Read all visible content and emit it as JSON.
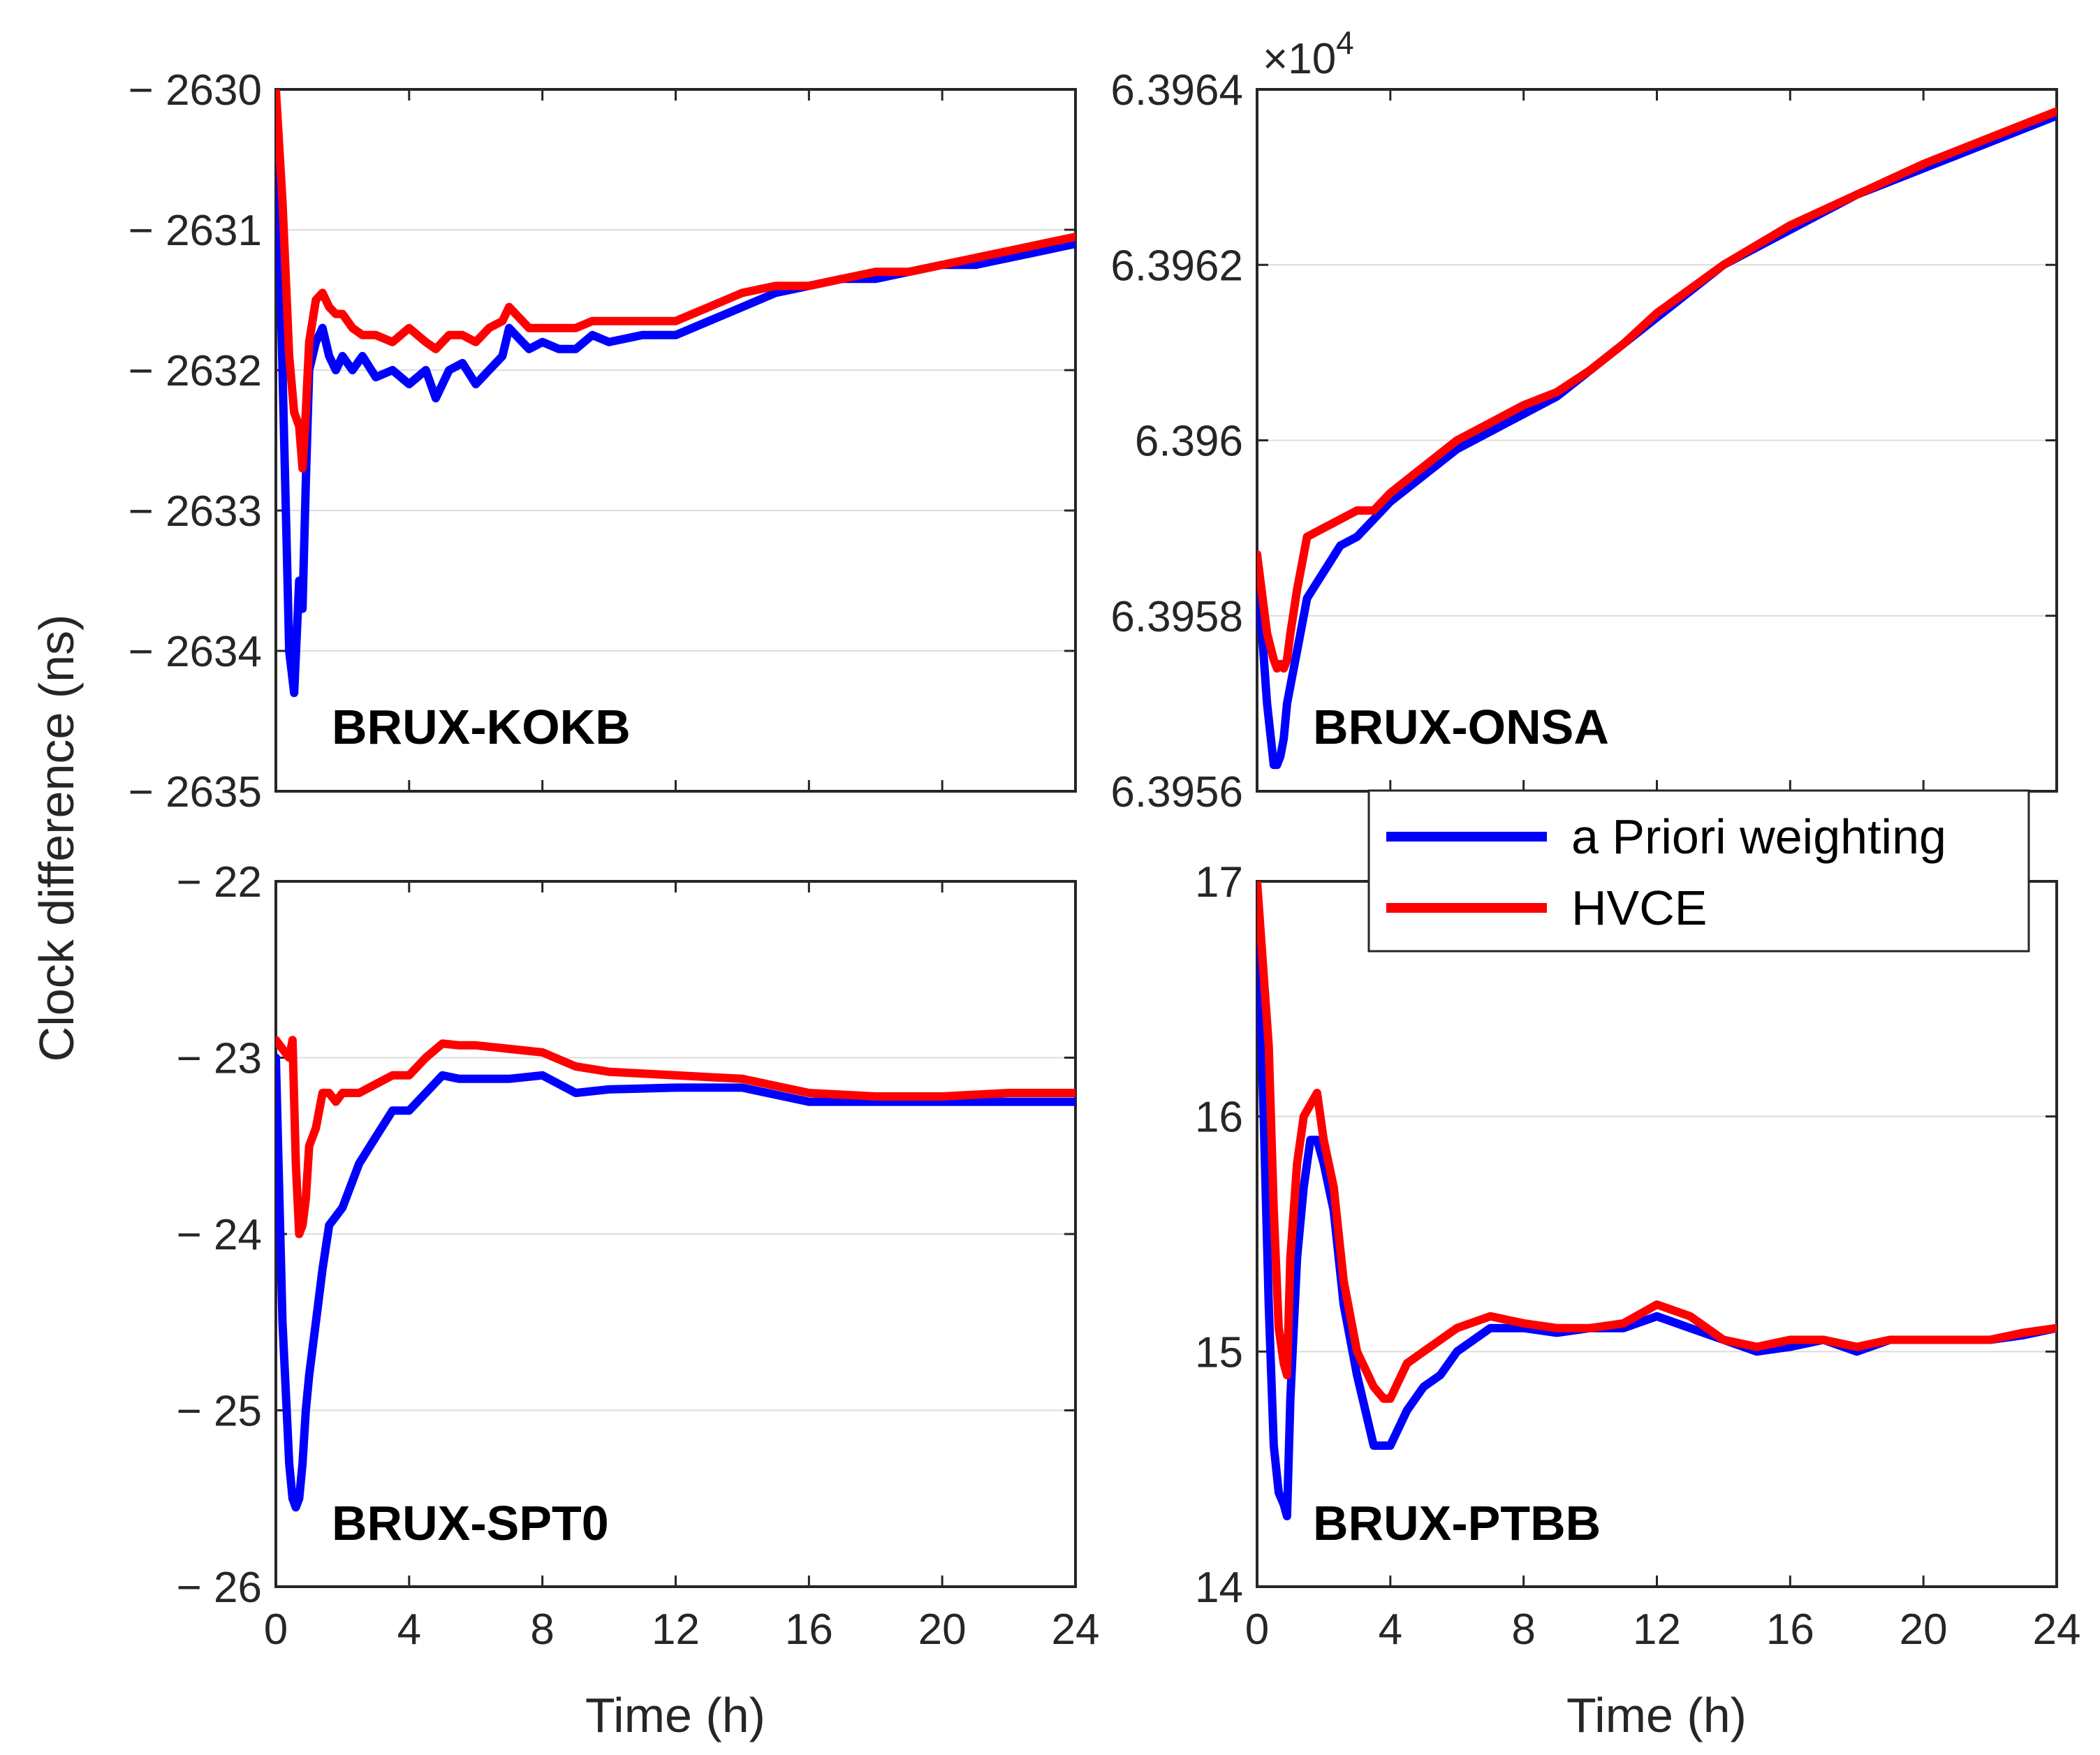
{
  "figure": {
    "ylabel": "Clock difference (ns)"
  },
  "legend": {
    "location": "between right panels",
    "entries": [
      {
        "label": "a Priori weighting",
        "color": "#0000ff"
      },
      {
        "label": "HVCE",
        "color": "#ff0000"
      }
    ]
  },
  "chart_data": [
    {
      "type": "line",
      "annotation": "BRUX-KOKB",
      "xlabel": "",
      "ylabel": "",
      "xlim": [
        0,
        24
      ],
      "xticks": [
        0,
        4,
        8,
        12,
        16,
        20,
        24
      ],
      "xtick_labels": [],
      "ylim": [
        -2635,
        -2630
      ],
      "yticks": [
        -2630,
        -2631,
        -2632,
        -2633,
        -2634,
        -2635
      ],
      "ytick_labels": [
        "− 2630",
        "− 2631",
        "− 2632",
        "− 2633",
        "− 2634",
        "− 2635"
      ],
      "exponent": "",
      "series": [
        {
          "name": "a Priori weighting",
          "color": "#0000ff",
          "x": [
            0,
            0.2,
            0.4,
            0.55,
            0.7,
            0.8,
            0.9,
            1.0,
            1.2,
            1.4,
            1.6,
            1.8,
            2.0,
            2.3,
            2.6,
            3.0,
            3.5,
            4.0,
            4.5,
            4.8,
            5.2,
            5.6,
            6.0,
            6.4,
            6.8,
            7.0,
            7.2,
            7.6,
            8.0,
            8.5,
            9.0,
            9.5,
            10.0,
            11.0,
            12.0,
            13.0,
            14.0,
            15.0,
            16.0,
            17.0,
            18.0,
            19.0,
            20.0,
            21.0,
            22.0,
            23.0,
            24.0
          ],
          "y": [
            -2630.0,
            -2632.0,
            -2634.0,
            -2634.3,
            -2633.5,
            -2633.7,
            -2632.8,
            -2632.0,
            -2631.8,
            -2631.7,
            -2631.9,
            -2632.0,
            -2631.9,
            -2632.0,
            -2631.9,
            -2632.05,
            -2632.0,
            -2632.1,
            -2632.0,
            -2632.2,
            -2632.0,
            -2631.95,
            -2632.1,
            -2632.0,
            -2631.9,
            -2631.7,
            -2631.75,
            -2631.85,
            -2631.8,
            -2631.85,
            -2631.85,
            -2631.75,
            -2631.8,
            -2631.75,
            -2631.75,
            -2631.65,
            -2631.55,
            -2631.45,
            -2631.4,
            -2631.35,
            -2631.35,
            -2631.3,
            -2631.25,
            -2631.25,
            -2631.2,
            -2631.15,
            -2631.1
          ]
        },
        {
          "name": "HVCE",
          "color": "#ff0000",
          "x": [
            0,
            0.2,
            0.4,
            0.55,
            0.7,
            0.8,
            0.9,
            1.0,
            1.2,
            1.4,
            1.6,
            1.8,
            2.0,
            2.3,
            2.6,
            3.0,
            3.5,
            4.0,
            4.5,
            4.8,
            5.2,
            5.6,
            6.0,
            6.4,
            6.8,
            7.0,
            7.2,
            7.6,
            8.0,
            8.5,
            9.0,
            9.5,
            10.0,
            11.0,
            12.0,
            13.0,
            14.0,
            15.0,
            16.0,
            17.0,
            18.0,
            19.0,
            20.0,
            21.0,
            22.0,
            23.0,
            24.0
          ],
          "y": [
            -2630.0,
            -2630.8,
            -2631.9,
            -2632.3,
            -2632.4,
            -2632.7,
            -2632.3,
            -2631.8,
            -2631.5,
            -2631.45,
            -2631.55,
            -2631.6,
            -2631.6,
            -2631.7,
            -2631.75,
            -2631.75,
            -2631.8,
            -2631.7,
            -2631.8,
            -2631.85,
            -2631.75,
            -2631.75,
            -2631.8,
            -2631.7,
            -2631.65,
            -2631.55,
            -2631.6,
            -2631.7,
            -2631.7,
            -2631.7,
            -2631.7,
            -2631.65,
            -2631.65,
            -2631.65,
            -2631.65,
            -2631.55,
            -2631.45,
            -2631.4,
            -2631.4,
            -2631.35,
            -2631.3,
            -2631.3,
            -2631.25,
            -2631.2,
            -2631.15,
            -2631.1,
            -2631.05
          ]
        }
      ]
    },
    {
      "type": "line",
      "annotation": "BRUX-ONSA",
      "xlabel": "",
      "ylabel": "",
      "xlim": [
        0,
        24
      ],
      "xticks": [
        0,
        4,
        8,
        12,
        16,
        20,
        24
      ],
      "xtick_labels": [],
      "ylim": [
        63956,
        63964
      ],
      "yticks": [
        63956,
        63958,
        63960,
        63962,
        63964
      ],
      "ytick_labels": [
        "6.3956",
        "6.3958",
        "6.396",
        "6.3962",
        "6.3964"
      ],
      "exponent": "×10",
      "exponent_power": "4",
      "series": [
        {
          "name": "a Priori weighting",
          "color": "#0000ff",
          "x": [
            0,
            0.3,
            0.5,
            0.6,
            0.7,
            0.8,
            0.9,
            1.0,
            1.2,
            1.5,
            2.0,
            2.5,
            3.0,
            3.5,
            4.0,
            5.0,
            6.0,
            7.0,
            8.0,
            9.0,
            10.0,
            11.0,
            12.0,
            14.0,
            16.0,
            18.0,
            20.0,
            22.0,
            24.0
          ],
          "y": [
            63958.6,
            63957.0,
            63956.3,
            63956.3,
            63956.4,
            63956.6,
            63957.0,
            63957.2,
            63957.6,
            63958.2,
            63958.5,
            63958.8,
            63958.9,
            63959.1,
            63959.3,
            63959.6,
            63959.9,
            63960.1,
            63960.3,
            63960.5,
            63960.8,
            63961.1,
            63961.4,
            63962.0,
            63962.4,
            63962.8,
            63963.1,
            63963.4,
            63963.7
          ]
        },
        {
          "name": "HVCE",
          "color": "#ff0000",
          "x": [
            0,
            0.3,
            0.5,
            0.6,
            0.7,
            0.8,
            0.9,
            1.0,
            1.2,
            1.5,
            2.0,
            2.5,
            3.0,
            3.5,
            4.0,
            5.0,
            6.0,
            7.0,
            8.0,
            9.0,
            10.0,
            11.0,
            12.0,
            14.0,
            16.0,
            18.0,
            20.0,
            22.0,
            24.0
          ],
          "y": [
            63958.7,
            63957.8,
            63957.5,
            63957.4,
            63957.45,
            63957.4,
            63957.5,
            63957.8,
            63958.3,
            63958.9,
            63959.0,
            63959.1,
            63959.2,
            63959.2,
            63959.4,
            63959.7,
            63960.0,
            63960.2,
            63960.4,
            63960.55,
            63960.8,
            63961.1,
            63961.45,
            63962.0,
            63962.45,
            63962.8,
            63963.15,
            63963.45,
            63963.75
          ]
        }
      ]
    },
    {
      "type": "line",
      "annotation": "BRUX-SPT0",
      "xlabel": "Time (h)",
      "ylabel": "",
      "xlim": [
        0,
        24
      ],
      "xticks": [
        0,
        4,
        8,
        12,
        16,
        20,
        24
      ],
      "xtick_labels": [
        "0",
        "4",
        "8",
        "12",
        "16",
        "20",
        "24"
      ],
      "ylim": [
        -26,
        -22
      ],
      "yticks": [
        -22,
        -23,
        -24,
        -25,
        -26
      ],
      "ytick_labels": [
        "− 22",
        "− 23",
        "− 24",
        "− 25",
        "− 26"
      ],
      "exponent": "",
      "series": [
        {
          "name": "a Priori weighting",
          "color": "#0000ff",
          "x": [
            0,
            0.2,
            0.4,
            0.5,
            0.6,
            0.7,
            0.8,
            0.9,
            1.0,
            1.2,
            1.4,
            1.6,
            1.8,
            2.0,
            2.5,
            3.0,
            3.5,
            4.0,
            4.5,
            5.0,
            5.5,
            6.0,
            7.0,
            8.0,
            9.0,
            10.0,
            12.0,
            14.0,
            16.0,
            18.0,
            20.0,
            22.0,
            24.0
          ],
          "y": [
            -23.0,
            -24.5,
            -25.3,
            -25.5,
            -25.55,
            -25.5,
            -25.3,
            -25.0,
            -24.8,
            -24.5,
            -24.2,
            -23.95,
            -23.9,
            -23.85,
            -23.6,
            -23.45,
            -23.3,
            -23.3,
            -23.2,
            -23.1,
            -23.12,
            -23.12,
            -23.12,
            -23.1,
            -23.2,
            -23.18,
            -23.17,
            -23.17,
            -23.25,
            -23.25,
            -23.25,
            -23.25,
            -23.25
          ]
        },
        {
          "name": "HVCE",
          "color": "#ff0000",
          "x": [
            0,
            0.2,
            0.4,
            0.5,
            0.6,
            0.7,
            0.8,
            0.9,
            1.0,
            1.2,
            1.4,
            1.6,
            1.8,
            2.0,
            2.5,
            3.0,
            3.5,
            4.0,
            4.5,
            5.0,
            5.5,
            6.0,
            7.0,
            8.0,
            9.0,
            10.0,
            12.0,
            14.0,
            16.0,
            18.0,
            20.0,
            22.0,
            24.0
          ],
          "y": [
            -22.9,
            -22.95,
            -23.0,
            -22.9,
            -23.6,
            -24.0,
            -23.95,
            -23.8,
            -23.5,
            -23.4,
            -23.2,
            -23.2,
            -23.25,
            -23.2,
            -23.2,
            -23.15,
            -23.1,
            -23.1,
            -23.0,
            -22.92,
            -22.93,
            -22.93,
            -22.95,
            -22.97,
            -23.05,
            -23.08,
            -23.1,
            -23.12,
            -23.2,
            -23.22,
            -23.22,
            -23.2,
            -23.2
          ]
        }
      ]
    },
    {
      "type": "line",
      "annotation": "BRUX-PTBB",
      "xlabel": "Time (h)",
      "ylabel": "",
      "xlim": [
        0,
        24
      ],
      "xticks": [
        0,
        4,
        8,
        12,
        16,
        20,
        24
      ],
      "xtick_labels": [
        "0",
        "4",
        "8",
        "12",
        "16",
        "20",
        "24"
      ],
      "ylim": [
        14,
        17
      ],
      "yticks": [
        14,
        15,
        16,
        17
      ],
      "ytick_labels": [
        "14",
        "15",
        "16",
        "17"
      ],
      "exponent": "",
      "series": [
        {
          "name": "a Priori weighting",
          "color": "#0000ff",
          "x": [
            0,
            0.2,
            0.35,
            0.5,
            0.65,
            0.8,
            0.9,
            1.0,
            1.2,
            1.4,
            1.6,
            1.8,
            2.0,
            2.3,
            2.6,
            3.0,
            3.5,
            3.8,
            4.0,
            4.5,
            5.0,
            5.5,
            6.0,
            7.0,
            8.0,
            9.0,
            10.0,
            11.0,
            12.0,
            13.0,
            14.0,
            15.0,
            16.0,
            17.0,
            18.0,
            19.0,
            20.0,
            21.0,
            22.0,
            23.0,
            24.0
          ],
          "y": [
            17.0,
            16.0,
            15.2,
            14.6,
            14.4,
            14.35,
            14.3,
            14.8,
            15.4,
            15.7,
            15.9,
            15.9,
            15.8,
            15.6,
            15.2,
            14.9,
            14.6,
            14.6,
            14.6,
            14.75,
            14.85,
            14.9,
            15.0,
            15.1,
            15.1,
            15.08,
            15.1,
            15.1,
            15.15,
            15.1,
            15.05,
            15.0,
            15.02,
            15.05,
            15.0,
            15.05,
            15.05,
            15.05,
            15.05,
            15.07,
            15.1
          ]
        },
        {
          "name": "HVCE",
          "color": "#ff0000",
          "x": [
            0,
            0.2,
            0.35,
            0.5,
            0.65,
            0.8,
            0.9,
            1.0,
            1.2,
            1.4,
            1.6,
            1.8,
            2.0,
            2.3,
            2.6,
            3.0,
            3.5,
            3.8,
            4.0,
            4.5,
            5.0,
            5.5,
            6.0,
            7.0,
            8.0,
            9.0,
            10.0,
            11.0,
            12.0,
            13.0,
            14.0,
            15.0,
            16.0,
            17.0,
            18.0,
            19.0,
            20.0,
            21.0,
            22.0,
            23.0,
            24.0
          ],
          "y": [
            17.0,
            16.6,
            16.3,
            15.6,
            15.1,
            14.95,
            14.9,
            15.4,
            15.8,
            16.0,
            16.05,
            16.1,
            15.9,
            15.7,
            15.3,
            15.0,
            14.85,
            14.8,
            14.8,
            14.95,
            15.0,
            15.05,
            15.1,
            15.15,
            15.12,
            15.1,
            15.1,
            15.12,
            15.2,
            15.15,
            15.05,
            15.02,
            15.05,
            15.05,
            15.02,
            15.05,
            15.05,
            15.05,
            15.05,
            15.08,
            15.1
          ]
        }
      ]
    }
  ]
}
